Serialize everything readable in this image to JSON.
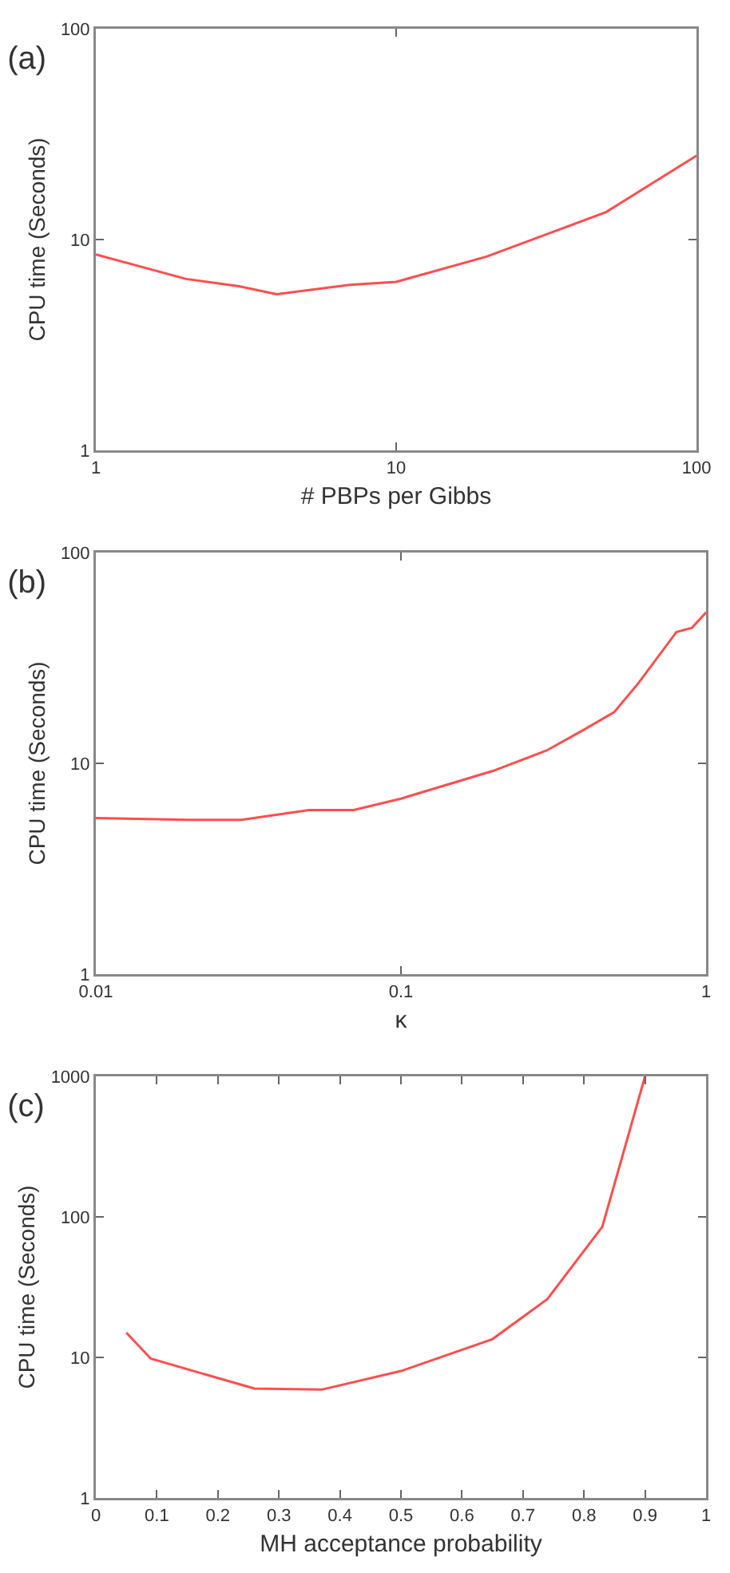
{
  "chart_data": [
    {
      "type": "line",
      "title": "(a)",
      "xlabel": "# PBPs per Gibbs",
      "ylabel": "CPU time (Seconds)",
      "log": "xy",
      "x": [
        1,
        2,
        3,
        4,
        7,
        10,
        20,
        50,
        100
      ],
      "series": [
        {
          "color": "#ff4d4d",
          "values": [
            8.5,
            6.5,
            6,
            5.5,
            6.1,
            6.3,
            8.3,
            13.5,
            25
          ]
        }
      ],
      "xlim": [
        1,
        100
      ],
      "xticks": [
        1,
        10,
        100
      ],
      "ylim": [
        1,
        100
      ],
      "yticks": [
        1,
        10,
        100
      ]
    },
    {
      "type": "line",
      "title": "(b)",
      "xlabel": "κ",
      "ylabel": "CPU time (Seconds)",
      "log": "xy",
      "x": [
        0.01,
        0.02,
        0.03,
        0.05,
        0.07,
        0.1,
        0.2,
        0.3,
        0.4,
        0.5,
        0.6,
        0.8,
        0.9,
        1
      ],
      "series": [
        {
          "color": "#ff4d4d",
          "values": [
            5.5,
            5.4,
            5.4,
            6,
            6,
            6.8,
            9.2,
            11.5,
            14.5,
            17.5,
            24,
            42,
            44,
            52
          ]
        }
      ],
      "xlim": [
        0.01,
        1
      ],
      "xticks": [
        0.01,
        0.1,
        1
      ],
      "ylim": [
        1,
        100
      ],
      "yticks": [
        1,
        10,
        100
      ]
    },
    {
      "type": "line",
      "title": "(c)",
      "xlabel": "MH acceptance probability",
      "ylabel": "CPU time (Seconds)",
      "log": "y",
      "x": [
        0.05,
        0.09,
        0.26,
        0.37,
        0.5,
        0.65,
        0.74,
        0.83,
        0.9
      ],
      "series": [
        {
          "color": "#ff4d4d",
          "values": [
            15,
            9.8,
            6,
            5.9,
            8,
            13.5,
            26,
            85,
            1000
          ]
        }
      ],
      "xlim": [
        0,
        1
      ],
      "xticks": [
        0,
        0.1,
        0.2,
        0.3,
        0.4,
        0.5,
        0.6,
        0.7,
        0.8,
        0.9,
        1
      ],
      "ylim": [
        1,
        1000
      ],
      "yticks": [
        1,
        10,
        100,
        1000
      ]
    }
  ]
}
